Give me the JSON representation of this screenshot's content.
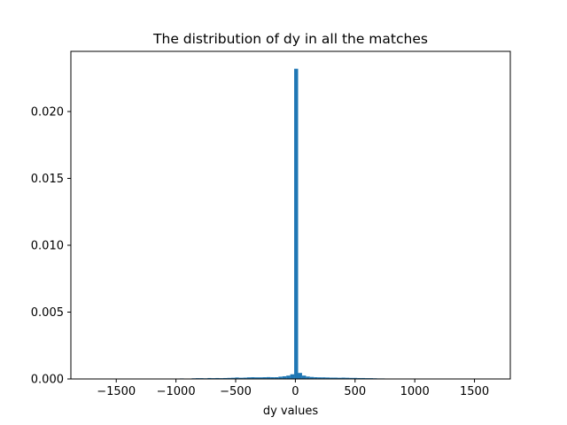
{
  "chart_data": {
    "type": "bar",
    "title": "The distribution of dy in all the matches",
    "xlabel": "dy values",
    "ylabel": "",
    "xlim": [
      -1880,
      1800
    ],
    "ylim": [
      0,
      0.0245
    ],
    "x_ticks": [
      -1500,
      -1000,
      -500,
      0,
      500,
      1000,
      1500
    ],
    "x_tick_labels": [
      "−1500",
      "−1000",
      "−500",
      "0",
      "500",
      "1000",
      "1500"
    ],
    "y_ticks": [
      0,
      0.005,
      0.01,
      0.015,
      0.02
    ],
    "y_tick_labels": [
      "0.000",
      "0.005",
      "0.010",
      "0.015",
      "0.020"
    ],
    "grid": false,
    "legend": "none",
    "bar_color": "#1f77b4",
    "bin_width": 33,
    "series": [
      {
        "x": [
          -1000,
          -967,
          -868,
          -835,
          -802,
          -769,
          -736,
          -703,
          -670,
          -637,
          -604,
          -571,
          -538,
          -505,
          -472,
          -439,
          -406,
          -373,
          -340,
          -307,
          -274,
          -241,
          -208,
          -175,
          -142,
          -109,
          -76,
          -43,
          -10,
          23,
          56,
          89,
          122,
          155,
          188,
          221,
          254,
          287,
          320,
          353,
          386,
          419,
          452,
          485,
          518,
          551,
          584,
          617,
          650,
          683,
          716,
          749
        ],
        "values": [
          3e-05,
          4e-05,
          5e-05,
          6e-05,
          6e-05,
          5e-05,
          7e-05,
          6e-05,
          7e-05,
          6e-05,
          7e-05,
          8e-05,
          9e-05,
          0.00011,
          9e-05,
          0.0001,
          0.00012,
          0.00013,
          0.00012,
          0.00012,
          0.00013,
          0.00014,
          0.00013,
          0.00013,
          0.00017,
          0.0002,
          0.00025,
          0.00035,
          0.0232,
          0.00045,
          0.00025,
          0.00018,
          0.00015,
          0.00013,
          0.00012,
          0.00012,
          0.00011,
          0.0001,
          0.0001,
          9e-05,
          0.0001,
          9e-05,
          8e-05,
          8e-05,
          7e-05,
          7e-05,
          6e-05,
          6e-05,
          5e-05,
          4e-05,
          4e-05,
          3e-05
        ]
      }
    ]
  }
}
